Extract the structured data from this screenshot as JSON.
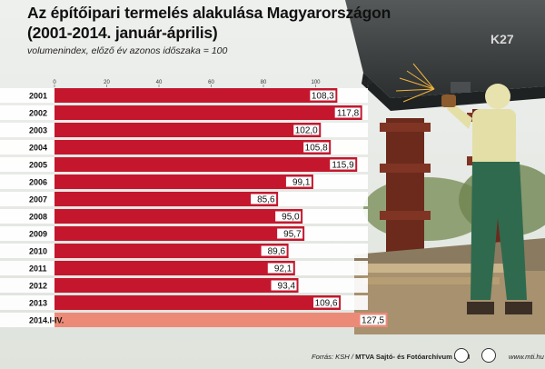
{
  "header": {
    "title_line1": "Az építőipari termelés alakulása Magyarországon",
    "title_line2": "(2001-2014. január-április)",
    "subtitle": "volumenindex, előző év azonos időszaka = 100"
  },
  "footer": {
    "source_prefix": "Forrás: KSH / ",
    "source_bold": "MTVA Sajtó- és Fotóarchívum / MTI",
    "website": "www.mti.hu"
  },
  "colors": {
    "bar": "#c4172e",
    "bar_highlight": "#ec8a78",
    "label_box": "#ffffff",
    "row_stripe": "#ffffff"
  },
  "chart_data": {
    "type": "bar",
    "orientation": "horizontal",
    "title": "Az építőipari termelés alakulása Magyarországon (2001-2014. január-április)",
    "subtitle": "volumenindex, előző év azonos időszaka = 100",
    "categories": [
      "2001",
      "2002",
      "2003",
      "2004",
      "2005",
      "2006",
      "2007",
      "2008",
      "2009",
      "2010",
      "2011",
      "2012",
      "2013",
      "2014.I-IV."
    ],
    "values": [
      108.3,
      117.8,
      102.0,
      105.8,
      115.9,
      99.1,
      85.6,
      95.0,
      95.7,
      89.6,
      92.1,
      93.4,
      109.6,
      127.5
    ],
    "value_labels": [
      "108,3",
      "117,8",
      "102,0",
      "105,8",
      "115,9",
      "99,1",
      "85,6",
      "95,0",
      "95,7",
      "89,6",
      "92,1",
      "93,4",
      "109,6",
      "127,5"
    ],
    "highlight_index": 13,
    "xlim": [
      0,
      120
    ],
    "xticks": [
      0,
      20,
      40,
      60,
      80,
      100,
      120
    ],
    "grid": false,
    "legend": "none"
  }
}
